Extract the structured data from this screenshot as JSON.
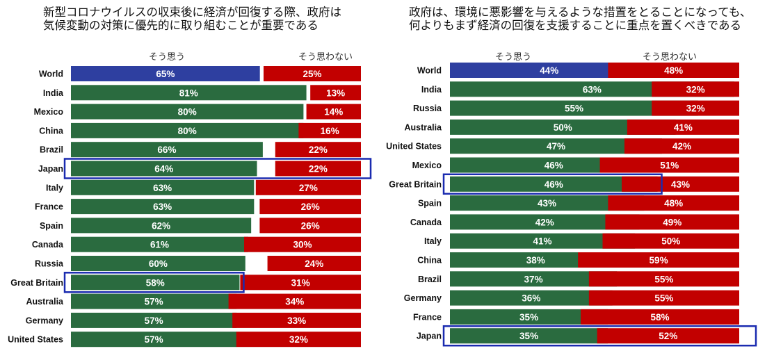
{
  "colors": {
    "agree": "#2a6b3f",
    "disagree": "#c20000",
    "world": "#2e3fa0",
    "highlight": "#1a2bb0"
  },
  "chart_data": [
    {
      "type": "bar",
      "title_lines": [
        "新型コロナウイルスの収束後に経済が回復する際、政府は",
        "気候変動の対策に優先的に取り組むことが重要である"
      ],
      "agree_label": "そう思う",
      "disagree_label": "そう思わない",
      "highlight": [
        "Japan",
        "Great Britain"
      ],
      "categories": [
        "World",
        "India",
        "Mexico",
        "China",
        "Brazil",
        "Japan",
        "Italy",
        "France",
        "Spain",
        "Canada",
        "Russia",
        "Great Britain",
        "Australia",
        "Germany",
        "United States"
      ],
      "series": [
        {
          "name": "そう思う",
          "values": [
            65,
            81,
            80,
            80,
            66,
            64,
            63,
            63,
            62,
            61,
            60,
            58,
            57,
            57,
            57
          ]
        },
        {
          "name": "そう思わない",
          "values": [
            25,
            13,
            14,
            16,
            22,
            22,
            27,
            26,
            26,
            30,
            24,
            31,
            34,
            33,
            32
          ]
        }
      ],
      "value_suffix": "%"
    },
    {
      "type": "bar",
      "title_lines": [
        "政府は、環境に悪影響を与えるような措置をとることになっても、",
        "何よりもまず経済の回復を支援することに重点を置くべきである"
      ],
      "agree_label": "そう思う",
      "disagree_label": "そう思わない",
      "highlight": [
        "Great Britain",
        "Japan"
      ],
      "categories": [
        "World",
        "India",
        "Russia",
        "Australia",
        "United States",
        "Mexico",
        "Great Britain",
        "Spain",
        "Canada",
        "Italy",
        "China",
        "Brazil",
        "Germany",
        "France",
        "Japan"
      ],
      "series": [
        {
          "name": "そう思う",
          "values": [
            44,
            63,
            55,
            50,
            47,
            46,
            46,
            43,
            42,
            41,
            38,
            37,
            36,
            35,
            35
          ]
        },
        {
          "name": "そう思わない",
          "values": [
            48,
            32,
            32,
            41,
            42,
            51,
            43,
            48,
            49,
            50,
            59,
            55,
            55,
            58,
            52
          ]
        }
      ],
      "value_suffix": "%"
    }
  ]
}
